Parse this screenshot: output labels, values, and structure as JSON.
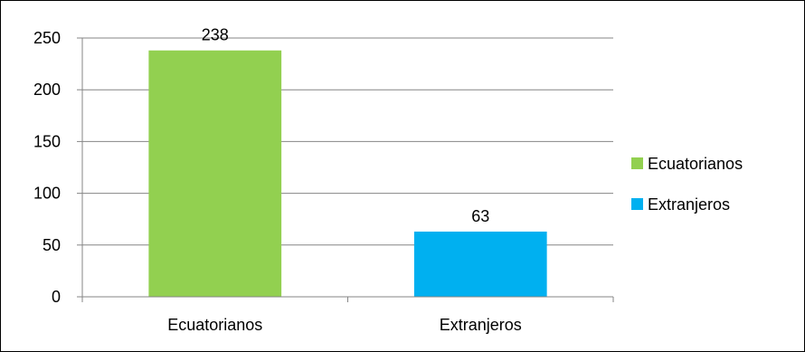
{
  "chart_data": {
    "type": "bar",
    "categories": [
      "Ecuatorianos",
      "Extranjeros"
    ],
    "values": [
      238,
      63
    ],
    "data_labels": [
      "238",
      "63"
    ],
    "colors": [
      "#92d050",
      "#00b0f0"
    ],
    "ylim": [
      0,
      250
    ],
    "yticks": [
      0,
      50,
      100,
      150,
      200,
      250
    ],
    "grid": true,
    "legend": {
      "position": "right",
      "entries": [
        {
          "label": "Ecuatorianos",
          "color": "#92d050"
        },
        {
          "label": "Extranjeros",
          "color": "#00b0f0"
        }
      ]
    }
  }
}
